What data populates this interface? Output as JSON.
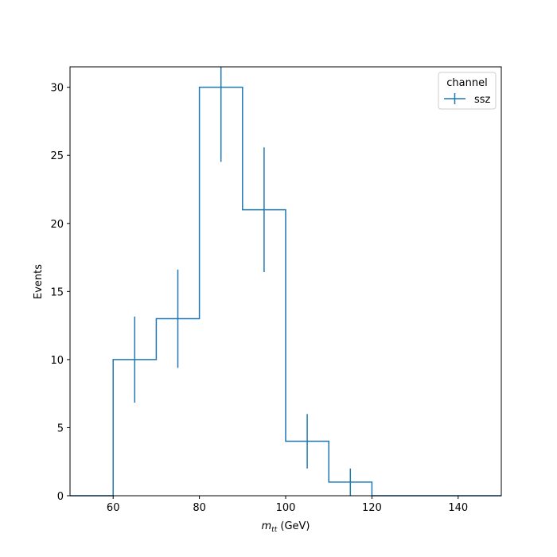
{
  "chart_data": {
    "type": "histogram",
    "x_label_main": "m",
    "x_label_sub": "tt",
    "x_label_unit": " (GeV)",
    "ylabel": "Events",
    "xlim": [
      50,
      150
    ],
    "ylim": [
      0,
      31.5
    ],
    "x_ticks": [
      60,
      80,
      100,
      120,
      140
    ],
    "y_ticks": [
      0,
      5,
      10,
      15,
      20,
      25,
      30
    ],
    "bin_edges": [
      50,
      60,
      70,
      80,
      90,
      100,
      110,
      120,
      130,
      140,
      150
    ],
    "values": [
      0,
      10,
      13,
      30,
      21,
      4,
      1,
      0,
      0,
      0
    ],
    "errors": [
      0,
      3.16,
      3.61,
      5.48,
      4.58,
      2.0,
      1.0,
      0,
      0,
      0
    ],
    "series": [
      {
        "name": "ssz",
        "color": "#1f77b4"
      }
    ],
    "legend": {
      "title": "channel",
      "placement": "top-right"
    },
    "grid": false
  }
}
